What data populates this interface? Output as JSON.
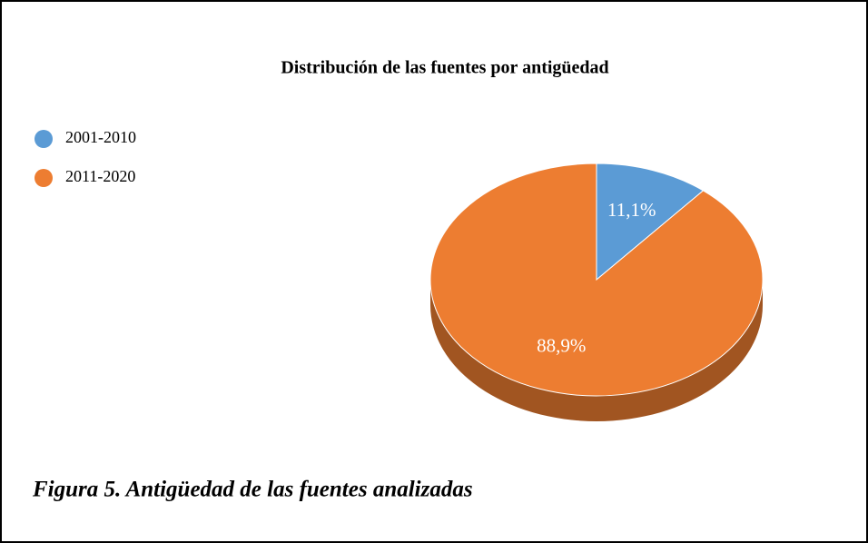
{
  "chart_data": {
    "type": "pie",
    "title": "Distribución de las fuentes por antigüedad",
    "categories": [
      "2001-2010",
      "2011-2020"
    ],
    "values": [
      11.1,
      88.9
    ],
    "value_labels": [
      "11,1%",
      "88,9%"
    ],
    "colors": [
      "#5b9bd5",
      "#ed7d31"
    ],
    "legend": "left"
  },
  "caption": "Figura 5. Antigüedad de las fuentes analizadas"
}
